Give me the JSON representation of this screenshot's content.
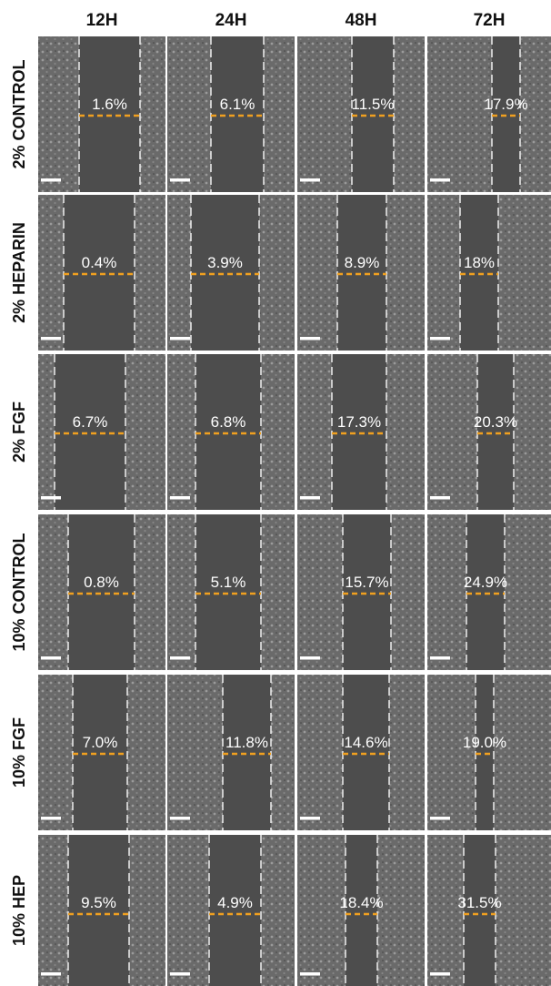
{
  "columns": [
    "12H",
    "24H",
    "48H",
    "72H"
  ],
  "rows": [
    {
      "label": "2% CONTROL",
      "cells": [
        "1.6%",
        "6.1%",
        "11.5%",
        "17.9%"
      ]
    },
    {
      "label": "2% HEPARIN",
      "cells": [
        "0.4%",
        "3.9%",
        "8.9%",
        "18%"
      ]
    },
    {
      "label": "2% FGF",
      "cells": [
        "6.7%",
        "6.8%",
        "17.3%",
        "20.3%"
      ]
    },
    {
      "label": "10% CONTROL",
      "cells": [
        "0.8%",
        "5.1%",
        "15.7%",
        "24.9%"
      ]
    },
    {
      "label": "10% FGF",
      "cells": [
        "7.0%",
        "11.8%",
        "14.6%",
        "19.0%"
      ]
    },
    {
      "label": "10% HEP",
      "cells": [
        "9.5%",
        "4.9%",
        "18.4%",
        "31.5%"
      ]
    }
  ]
}
